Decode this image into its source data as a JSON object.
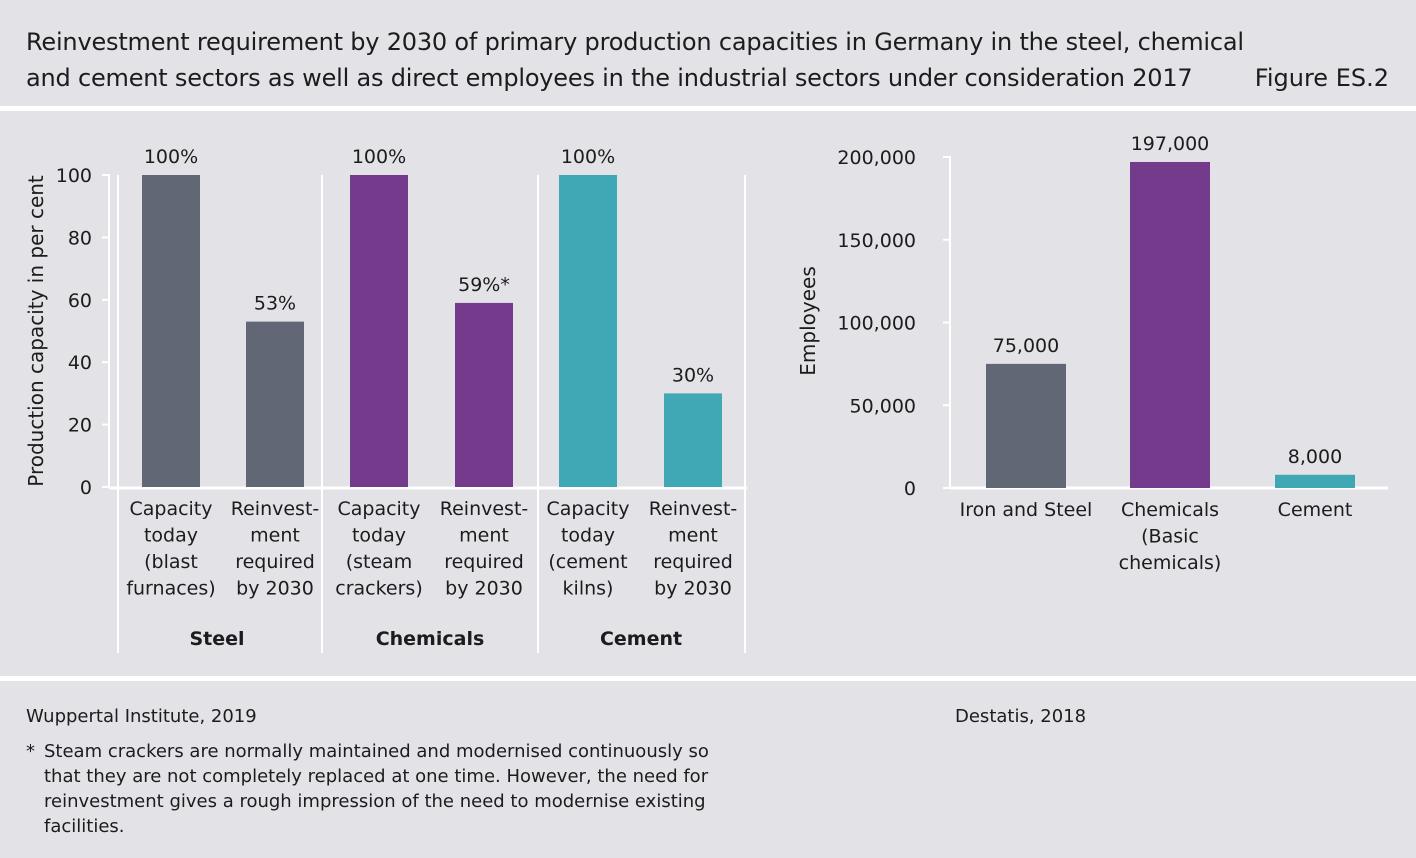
{
  "header": {
    "title": "Reinvestment requirement by 2030 of primary production capacities in Germany in the steel, chemical and cement sectors as well as direct employees in the industrial sectors under consideration 2017",
    "figure_label": "Figure ES.2"
  },
  "colors": {
    "background": "#e2e2e7",
    "steel": "#626776",
    "chemicals": "#743a8b",
    "cement": "#40a8b4",
    "axis": "#ffffff"
  },
  "chart_data": [
    {
      "type": "bar",
      "ylabel": "Production capacity in per cent",
      "ylim": [
        0,
        100
      ],
      "yticks": [
        "0",
        "20",
        "40",
        "60",
        "80",
        "100"
      ],
      "grid": false,
      "groups": [
        {
          "name": "Steel",
          "color": "#626776",
          "bars": [
            {
              "label": [
                "Capacity",
                "today",
                "(blast",
                "furnaces)"
              ],
              "value": 100,
              "value_label": "100%"
            },
            {
              "label": [
                "Reinvest-",
                "ment",
                "required",
                "by 2030"
              ],
              "value": 53,
              "value_label": "53%"
            }
          ]
        },
        {
          "name": "Chemicals",
          "color": "#743a8b",
          "bars": [
            {
              "label": [
                "Capacity",
                "today",
                "(steam",
                "crackers)"
              ],
              "value": 100,
              "value_label": "100%"
            },
            {
              "label": [
                "Reinvest-",
                "ment",
                "required",
                "by 2030"
              ],
              "value": 59,
              "value_label": "59%*"
            }
          ]
        },
        {
          "name": "Cement",
          "color": "#40a8b4",
          "bars": [
            {
              "label": [
                "Capacity",
                "today",
                "(cement",
                "kilns)"
              ],
              "value": 100,
              "value_label": "100%"
            },
            {
              "label": [
                "Reinvest-",
                "ment",
                "required",
                "by 2030"
              ],
              "value": 30,
              "value_label": "30%"
            }
          ]
        }
      ]
    },
    {
      "type": "bar",
      "ylabel": "Employees",
      "ylim": [
        0,
        200000
      ],
      "yticks": [
        "0",
        "50,000",
        "100,000",
        "150,000",
        "200,000"
      ],
      "grid": false,
      "bars": [
        {
          "label": [
            "Iron and Steel"
          ],
          "value": 75000,
          "value_label": "75,000",
          "color": "#626776"
        },
        {
          "label": [
            "Chemicals",
            "(Basic",
            "chemicals)"
          ],
          "value": 197000,
          "value_label": "197,000",
          "color": "#743a8b"
        },
        {
          "label": [
            "Cement"
          ],
          "value": 8000,
          "value_label": "8,000",
          "color": "#40a8b4"
        }
      ]
    }
  ],
  "footer": {
    "source_left": "Wuppertal Institute, 2019",
    "source_right": "Destatis, 2018",
    "footnote_marker": "*",
    "footnote": "Steam crackers are normally maintained and modernised continuously so that they are not completely replaced at one time. However, the need for reinvestment gives a rough impression of the need to modernise existing facilities."
  }
}
